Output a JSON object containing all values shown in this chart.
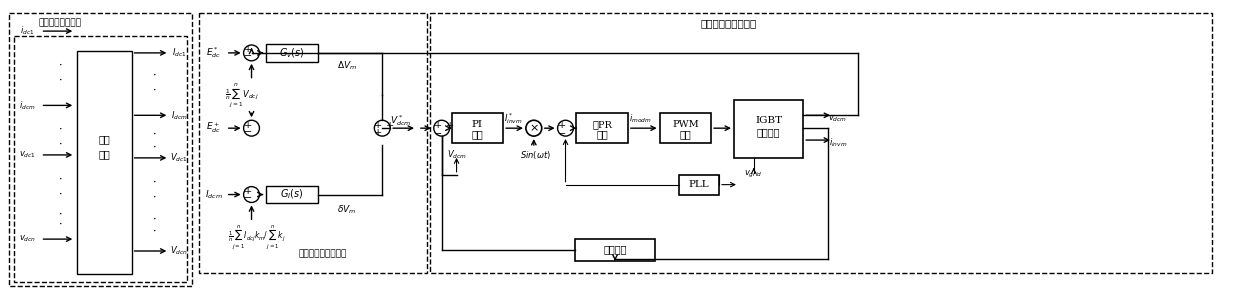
{
  "title_left": "二次纹波滤波处理",
  "title_right": "电压电流双闭环控制",
  "title_mid": "低电压偏移均流控制",
  "bg_color": "#ffffff",
  "line_color": "#000000",
  "box_line_color": "#000000",
  "dashed_line_color": "#000000",
  "font_size": 7,
  "fig_width": 12.39,
  "fig_height": 2.93
}
